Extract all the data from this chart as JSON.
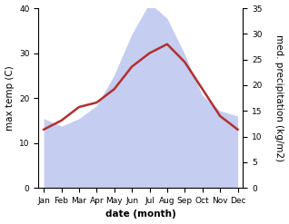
{
  "months": [
    "Jan",
    "Feb",
    "Mar",
    "Apr",
    "May",
    "Jun",
    "Jul",
    "Aug",
    "Sep",
    "Oct",
    "Nov",
    "Dec"
  ],
  "temperature": [
    13.0,
    15.0,
    18.0,
    19.0,
    22.0,
    27.0,
    30.0,
    32.0,
    28.0,
    22.0,
    16.0,
    13.0
  ],
  "precipitation": [
    13.5,
    12.0,
    13.5,
    16.0,
    22.0,
    30.0,
    36.0,
    33.0,
    26.0,
    18.0,
    15.0,
    14.0
  ],
  "temp_color": "#b03030",
  "precip_color": "#c5cdf0",
  "temp_ylim": [
    0,
    40
  ],
  "precip_ylim": [
    0,
    35
  ],
  "temp_yticks": [
    0,
    10,
    20,
    30,
    40
  ],
  "precip_yticks": [
    0,
    5,
    10,
    15,
    20,
    25,
    30,
    35
  ],
  "ylabel_left": "max temp (C)",
  "ylabel_right": "med. precipitation (kg/m2)",
  "xlabel": "date (month)",
  "background_color": "#ffffff",
  "label_fontsize": 7.5,
  "tick_fontsize": 6.5
}
